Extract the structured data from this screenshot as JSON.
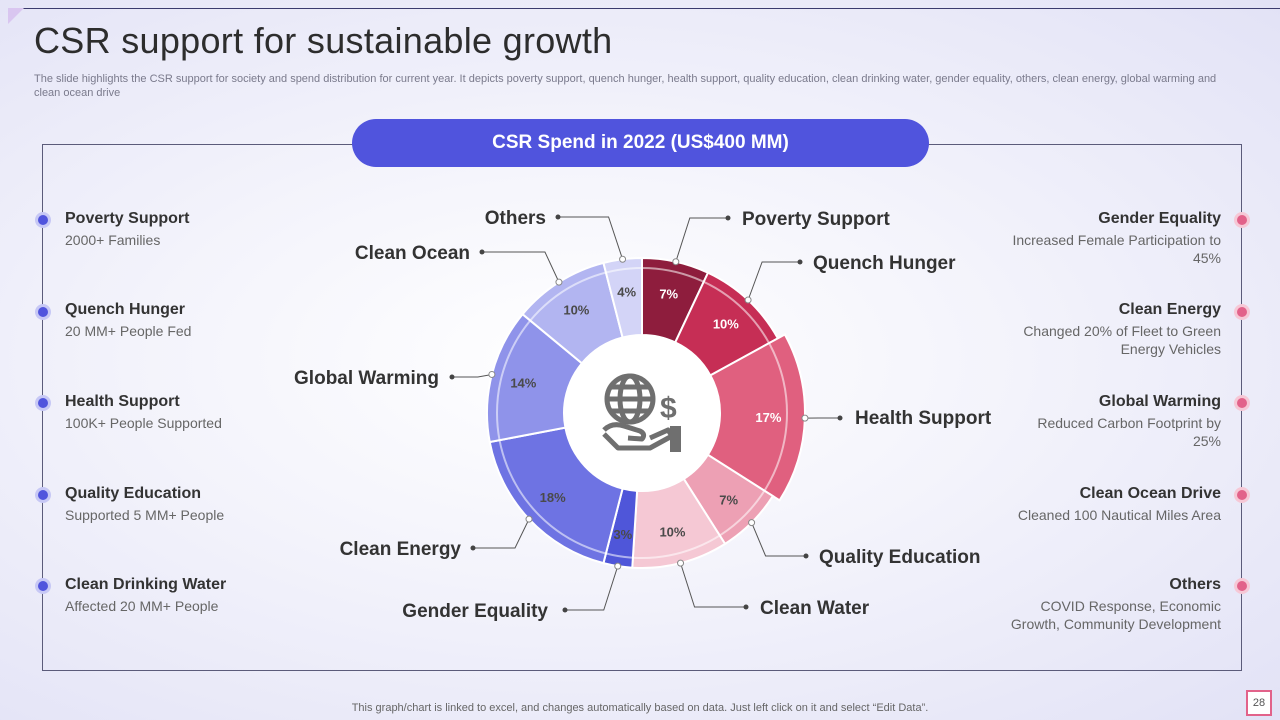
{
  "title": "CSR support for sustainable growth",
  "subtitle": "The slide highlights the CSR support for society and spend distribution for current year.  It depicts poverty support, quench hunger, health support, quality education, clean drinking water, gender equality, others, clean energy, global warming and clean ocean drive",
  "banner": "CSR Spend in 2022 (US$400 MM)",
  "left_items": [
    {
      "heading": "Poverty Support",
      "desc": "2000+ Families"
    },
    {
      "heading": "Quench Hunger",
      "desc": "20 MM+  People Fed"
    },
    {
      "heading": "Health Support",
      "desc": "100K+ People Supported"
    },
    {
      "heading": "Quality  Education",
      "desc": "Supported 5 MM+ People"
    },
    {
      "heading": "Clean Drinking Water",
      "desc": "Affected 20 MM+ People"
    }
  ],
  "right_items": [
    {
      "heading": "Gender Equality",
      "desc": "Increased Female Participation to 45%"
    },
    {
      "heading": "Clean Energy",
      "desc": "Changed 20% of Fleet to Green Energy Vehicles"
    },
    {
      "heading": "Global Warming",
      "desc": "Reduced Carbon Footprint by 25%"
    },
    {
      "heading": "Clean Ocean Drive",
      "desc": "Cleaned 100 Nautical Miles Area"
    },
    {
      "heading": "Others",
      "desc": "COVID Response, Economic Growth, Community Development"
    }
  ],
  "center_icon": "globe-dollar-hand-icon",
  "chart_data": {
    "type": "pie",
    "style": "donut",
    "categories": [
      "Poverty Support",
      "Quench Hunger",
      "Health Support",
      "Quality Education",
      "Clean Water",
      "Gender Equality",
      "Clean Energy",
      "Global Warming",
      "Clean Ocean",
      "Others"
    ],
    "values": [
      7,
      10,
      17,
      7,
      10,
      3,
      18,
      14,
      10,
      4
    ],
    "value_labels": [
      "7%",
      "10%",
      "17%",
      "7%",
      "10%",
      "3%",
      "18%",
      "14%",
      "10%",
      "4%"
    ],
    "colors": [
      "#8e1d3d",
      "#c62e55",
      "#e0607f",
      "#eda0b4",
      "#f5c8d4",
      "#4f56d9",
      "#6e73e3",
      "#8f93ea",
      "#b2b5f1",
      "#d3d4f7"
    ]
  },
  "footer": "This graph/chart is linked to excel,  and changes automatically based on data. Just left click on it and select “Edit Data”.",
  "page_number": "28"
}
